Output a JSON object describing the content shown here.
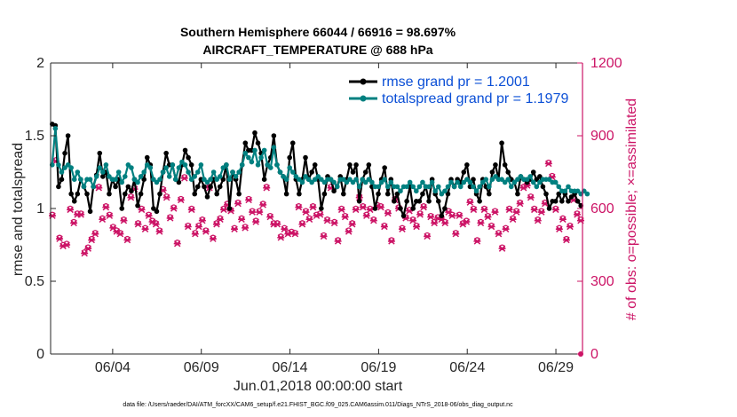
{
  "chart_data": {
    "type": "line",
    "title": [
      "Southern Hemisphere 66044 / 66916 = 98.697%",
      "AIRCRAFT_TEMPERATURE @ 688 hPa"
    ],
    "xlabel": "Jun.01,2018 00:00:00 start",
    "ylabel": "rmse and totalspread",
    "ylabel_right": "# of obs: o=possible; ×=assimilated",
    "footnote": "data file: /Users/raeder/DAI/ATM_forcXX/CAM6_setup/f.e21.FHIST_BGC.f09_025.CAM6assim.011/Diags_NTrS_2018-06/obs_diag_output.nc",
    "x_range_days": [
      0.5,
      30.5
    ],
    "ylim": [
      0,
      2
    ],
    "yticks": [
      "0",
      "0.5",
      "1",
      "1.5",
      "2"
    ],
    "yticks_right": [
      "0",
      "300",
      "600",
      "900",
      "1200"
    ],
    "ylim_right": [
      0,
      1200
    ],
    "xtick_days": [
      4,
      9,
      14,
      19,
      24,
      29
    ],
    "xtick_labels": [
      "06/04",
      "06/09",
      "06/14",
      "06/19",
      "06/24",
      "06/29"
    ],
    "colors": {
      "rmse": "#000000",
      "spread": "#008080",
      "obs": "#cc1466",
      "legend_text": "#0b4fd6"
    },
    "series": [
      {
        "name": "rmse grand pr = 1.2001",
        "values": [
          1.58,
          1.57,
          1.15,
          1.2,
          1.38,
          1.5,
          1.1,
          1.05,
          1.1,
          1.2,
          1.15,
          1.1,
          0.98,
          1.15,
          1.23,
          1.38,
          1.22,
          1.25,
          1.1,
          1.2,
          1.15,
          1.2,
          1.0,
          1.1,
          1.15,
          1.12,
          1.2,
          1.02,
          1.1,
          1.2,
          1.35,
          1.3,
          1.0,
          0.98,
          1.1,
          1.25,
          1.38,
          1.3,
          1.3,
          1.2,
          1.18,
          1.3,
          1.4,
          1.35,
          1.3,
          1.1,
          1.15,
          1.2,
          1.15,
          1.08,
          1.15,
          1.2,
          1.1,
          1.15,
          1.2,
          1.3,
          1.0,
          1.25,
          1.2,
          1.1,
          1.3,
          1.45,
          1.4,
          1.4,
          1.52,
          1.45,
          1.38,
          1.2,
          1.3,
          1.35,
          1.5,
          1.3,
          1.25,
          1.22,
          1.1,
          1.35,
          1.45,
          1.2,
          1.1,
          1.2,
          1.35,
          1.2,
          1.25,
          1.3,
          1.2,
          1.0,
          1.1,
          1.22,
          1.2,
          1.12,
          1.15,
          1.22,
          1.1,
          1.2,
          1.3,
          1.25,
          1.3,
          1.05,
          1.2,
          1.25,
          1.3,
          1.15,
          1.0,
          1.1,
          1.2,
          1.28,
          1.1,
          1.2,
          1.05,
          1.1,
          1.0,
          0.95,
          1.05,
          1.15,
          1.0,
          1.05,
          1.05,
          1.1,
          1.15,
          1.05,
          1.2,
          1.1,
          1.05,
          0.95,
          1.0,
          1.1,
          1.2,
          1.15,
          1.2,
          1.18,
          1.25,
          1.3,
          1.15,
          1.2,
          1.1,
          1.05,
          1.2,
          1.15,
          1.1,
          1.25,
          1.3,
          1.2,
          1.45,
          1.3,
          1.25,
          1.2,
          1.18,
          1.1,
          1.22,
          1.2,
          1.18,
          1.2,
          1.25,
          1.2,
          1.22,
          1.15,
          1.1,
          1.0,
          1.05,
          1.05,
          1.1,
          1.05,
          1.1,
          1.05,
          1.08,
          1.1,
          1.05,
          1.02
        ]
      },
      {
        "name": "totalspread grand pr = 1.1979",
        "values": [
          1.3,
          1.55,
          1.3,
          1.25,
          1.28,
          1.3,
          1.28,
          1.2,
          1.25,
          1.2,
          1.15,
          1.2,
          1.2,
          1.15,
          1.22,
          1.28,
          1.25,
          1.3,
          1.22,
          1.2,
          1.2,
          1.25,
          1.18,
          1.22,
          1.3,
          1.28,
          1.2,
          1.18,
          1.22,
          1.25,
          1.3,
          1.28,
          1.2,
          1.18,
          1.2,
          1.25,
          1.28,
          1.22,
          1.3,
          1.2,
          1.28,
          1.32,
          1.3,
          1.25,
          1.2,
          1.22,
          1.25,
          1.3,
          1.2,
          1.18,
          1.2,
          1.25,
          1.2,
          1.22,
          1.28,
          1.3,
          1.2,
          1.25,
          1.22,
          1.25,
          1.3,
          1.38,
          1.35,
          1.32,
          1.4,
          1.3,
          1.35,
          1.4,
          1.3,
          1.28,
          1.42,
          1.3,
          1.25,
          1.22,
          1.2,
          1.28,
          1.25,
          1.22,
          1.2,
          1.18,
          1.22,
          1.2,
          1.18,
          1.2,
          1.22,
          1.2,
          1.18,
          1.2,
          1.2,
          1.18,
          1.15,
          1.2,
          1.2,
          1.18,
          1.2,
          1.18,
          1.2,
          1.15,
          1.2,
          1.18,
          1.2,
          1.18,
          1.15,
          1.15,
          1.18,
          1.2,
          1.15,
          1.18,
          1.15,
          1.15,
          1.12,
          1.15,
          1.15,
          1.18,
          1.15,
          1.12,
          1.15,
          1.18,
          1.15,
          1.15,
          1.18,
          1.12,
          1.15,
          1.1,
          1.12,
          1.15,
          1.18,
          1.15,
          1.18,
          1.15,
          1.18,
          1.2,
          1.18,
          1.15,
          1.12,
          1.15,
          1.18,
          1.2,
          1.15,
          1.2,
          1.22,
          1.2,
          1.2,
          1.18,
          1.2,
          1.15,
          1.18,
          1.2,
          1.22,
          1.2,
          1.2,
          1.22,
          1.18,
          1.15,
          1.18,
          1.2,
          1.2,
          1.2,
          1.18,
          1.18,
          1.15,
          1.12,
          1.12,
          1.15,
          1.12,
          1.12,
          1.12,
          1.1,
          1.12,
          1.1
        ]
      },
      {
        "name": "obs possible",
        "values": [
          575,
          800,
          480,
          450,
          455,
          600,
          545,
          580,
          580,
          420,
          440,
          475,
          500,
          690,
          560,
          610,
          575,
          525,
          510,
          500,
          555,
          475,
          650,
          685,
          540,
          600,
          520,
          575,
          550,
          540,
          510,
          680,
          650,
          565,
          605,
          460,
          640,
          730,
          530,
          600,
          500,
          530,
          555,
          510,
          690,
          480,
          540,
          560,
          600,
          620,
          595,
          520,
          625,
          560,
          525,
          640,
          590,
          550,
          590,
          620,
          690,
          570,
          540,
          540,
          485,
          520,
          500,
          505,
          500,
          610,
          540,
          590,
          560,
          610,
          575,
          580,
          490,
          555,
          690,
          545,
          470,
          600,
          570,
          510,
          540,
          600,
          650,
          610,
          575,
          600,
          555,
          615,
          610,
          530,
          585,
          470,
          640,
          605,
          520,
          565,
          595,
          555,
          530,
          580,
          610,
          490,
          570,
          545,
          565,
          560,
          545,
          590,
          575,
          500,
          575,
          540,
          550,
          630,
          600,
          470,
          545,
          600,
          570,
          530,
          590,
          500,
          440,
          520,
          600,
          560,
          590,
          625,
          690,
          700,
          650,
          600,
          555,
          590,
          625,
          790,
          735,
          600,
          520,
          560,
          475,
          530,
          640,
          580,
          555
        ]
      },
      {
        "name": "obs assimilated",
        "values": [
          570,
          795,
          475,
          445,
          450,
          595,
          540,
          575,
          575,
          415,
          435,
          470,
          495,
          685,
          555,
          605,
          570,
          520,
          505,
          495,
          550,
          470,
          645,
          680,
          535,
          595,
          515,
          570,
          545,
          535,
          505,
          675,
          645,
          560,
          600,
          455,
          635,
          725,
          525,
          595,
          495,
          525,
          550,
          505,
          685,
          475,
          535,
          555,
          595,
          615,
          590,
          515,
          620,
          555,
          520,
          635,
          585,
          545,
          585,
          615,
          685,
          565,
          535,
          535,
          480,
          515,
          495,
          500,
          495,
          605,
          535,
          585,
          555,
          605,
          570,
          575,
          485,
          550,
          685,
          540,
          465,
          595,
          565,
          505,
          535,
          595,
          645,
          605,
          570,
          595,
          550,
          610,
          605,
          525,
          580,
          465,
          635,
          600,
          515,
          560,
          590,
          550,
          525,
          575,
          605,
          485,
          565,
          540,
          560,
          555,
          540,
          585,
          570,
          495,
          570,
          535,
          545,
          625,
          595,
          465,
          540,
          595,
          565,
          525,
          585,
          495,
          435,
          515,
          595,
          555,
          585,
          620,
          685,
          695,
          645,
          595,
          550,
          585,
          620,
          785,
          730,
          595,
          515,
          555,
          470,
          525,
          635,
          575,
          550
        ]
      }
    ]
  }
}
